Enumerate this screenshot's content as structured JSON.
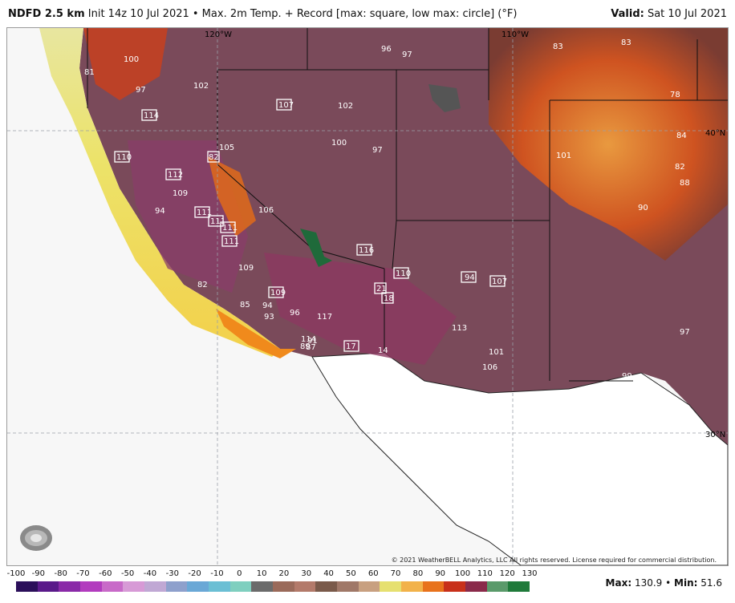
{
  "header": {
    "product": "NDFD 2.5 km",
    "subtitle": "Init 14z 10 Jul 2021 • Max. 2m Temp. + Record [max: square, low max: circle] (°F)",
    "valid_label": "Valid:",
    "valid_date": "Sat 10 Jul 2021"
  },
  "map": {
    "coords": [
      "120°W",
      "110°W",
      "40°N",
      "30°N"
    ],
    "values": [
      "100",
      "102",
      "96",
      "97",
      "97",
      "83",
      "83",
      "78",
      "84",
      "82",
      "88",
      "90",
      "101",
      "97",
      "99",
      "101",
      "106",
      "113",
      "117",
      "14",
      "94",
      "109",
      "109",
      "82",
      "85",
      "94",
      "93",
      "96",
      "106",
      "105",
      "102",
      "100",
      "97",
      "114",
      "87",
      "89",
      "81",
      "91"
    ],
    "records": [
      "114",
      "110",
      "112",
      "111",
      "111",
      "111",
      "111",
      "82",
      "107",
      "116",
      "110",
      "94",
      "107",
      "21",
      "18",
      "109",
      "117",
      "17"
    ],
    "copyright": "© 2021 WeatherBELL Analytics, LLC All rights reserved. License required for commercial distribution.",
    "logo_text": "WeatherBELL"
  },
  "scale": {
    "ticks": [
      "-100",
      "-90",
      "-80",
      "-70",
      "-60",
      "-50",
      "-40",
      "-30",
      "-20",
      "-10",
      "0",
      "10",
      "20",
      "30",
      "40",
      "50",
      "60",
      "70",
      "80",
      "90",
      "100",
      "110",
      "120",
      "130"
    ],
    "colors": [
      "#2b0f5a",
      "#5a1a8a",
      "#8a2aa8",
      "#b23cbe",
      "#c86ac8",
      "#d79ad6",
      "#c0a8d4",
      "#8ea0cc",
      "#6aa8d6",
      "#6bbfd4",
      "#7fcfbf",
      "#6b6b6b",
      "#9a6a5a",
      "#b37a6a",
      "#7a5a4a",
      "#a07868",
      "#c8a080",
      "#e6e070",
      "#f2b24a",
      "#e8721c",
      "#c8301a",
      "#8a2a4a",
      "#5a9a6a",
      "#1f7a3a"
    ],
    "max_label": "Max:",
    "max_value": "130.9",
    "min_label": "Min:",
    "min_value": "51.6"
  }
}
